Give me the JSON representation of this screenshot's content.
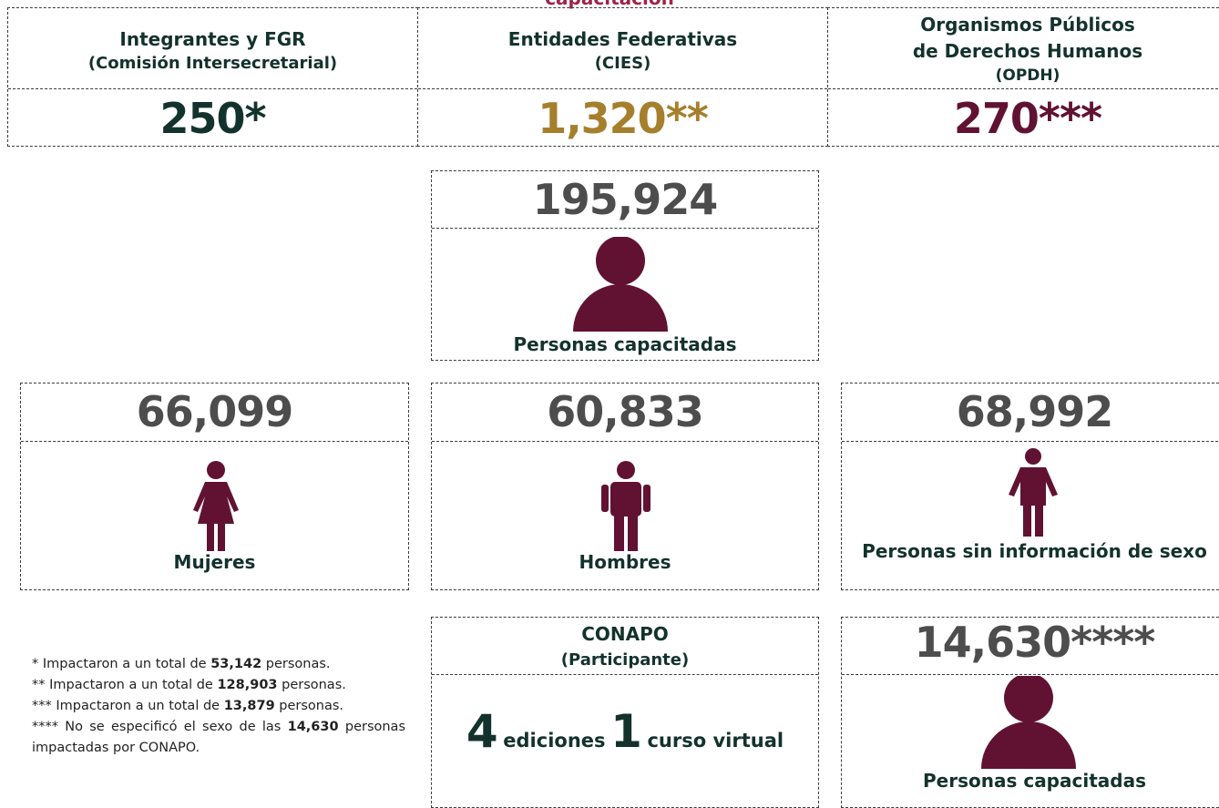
{
  "header_fragment": "capacitación",
  "top_row": [
    {
      "title": "Integrantes y FGR",
      "subtitle": "(Comisión Intersecretarial)",
      "value": "250*"
    },
    {
      "title": "Entidades Federativas",
      "subtitle": "(CIES)",
      "value": "1,320**"
    },
    {
      "title": "Organismos Públicos de Derechos Humanos",
      "subtitle": "(OPDH)",
      "value": "270***"
    }
  ],
  "total": {
    "value": "195,924",
    "label": "Personas capacitadas"
  },
  "breakdown": [
    {
      "value": "66,099",
      "label": "Mujeres"
    },
    {
      "value": "60,833",
      "label": "Hombres"
    },
    {
      "value": "68,992",
      "label": "Personas sin información de sexo"
    }
  ],
  "notes": [
    {
      "prefix": "* Impactaron a un total de",
      "bold": "53,142",
      "suffix": "personas."
    },
    {
      "prefix": "** Impactaron a un total de",
      "bold": "128,903",
      "suffix": "personas."
    },
    {
      "prefix": "*** Impactaron a un total de",
      "bold": "13,879",
      "suffix": "personas."
    },
    {
      "prefix": "**** No se especificó el sexo de las",
      "bold": "14,630",
      "suffix": "personas impactadas por CONAPO."
    }
  ],
  "conapo": {
    "title": "CONAPO",
    "subtitle": "(Participante)",
    "editions_count": "4",
    "editions_label": "ediciones",
    "course_count": "1",
    "course_label": "curso virtual"
  },
  "conapo_total": {
    "value": "14,630****",
    "label": "Personas capacitadas"
  }
}
